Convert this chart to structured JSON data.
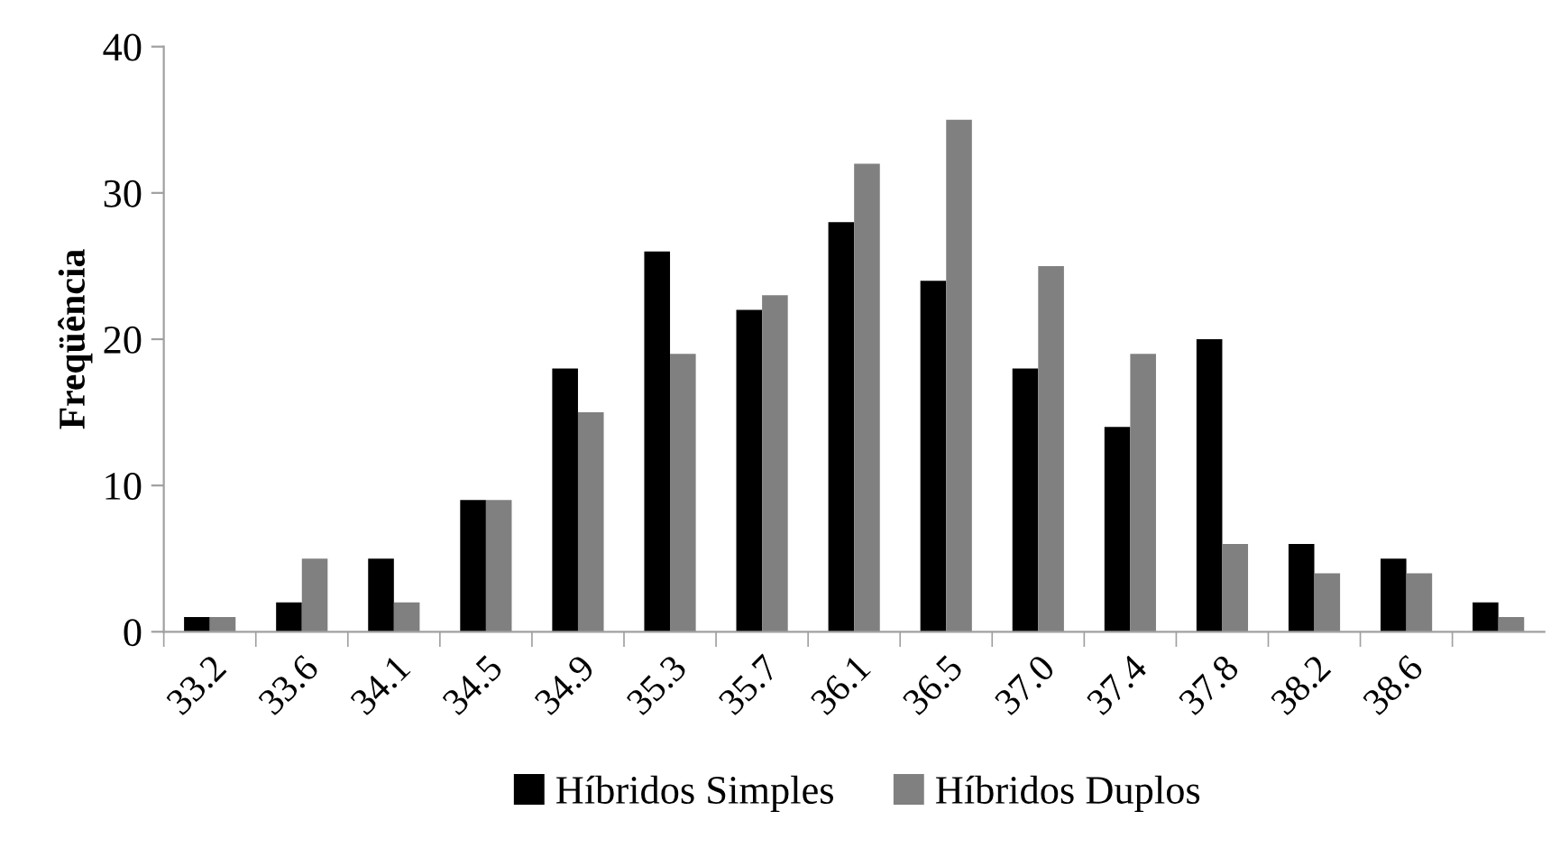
{
  "chart_data": {
    "type": "bar",
    "ylabel": "Freqüência",
    "categories": [
      "33.2",
      "33.6",
      "34.1",
      "34.5",
      "34.9",
      "35.3",
      "35.7",
      "36.1",
      "36.5",
      "37.0",
      "37.4",
      "37.8",
      "38.2",
      "38.6",
      null
    ],
    "series": [
      {
        "name": "Híbridos Simples",
        "color": "#000000",
        "values": [
          1,
          2,
          5,
          9,
          18,
          26,
          22,
          28,
          24,
          18,
          14,
          20,
          6,
          5,
          2
        ]
      },
      {
        "name": "Híbridos Duplos",
        "color": "#808080",
        "values": [
          1,
          5,
          2,
          9,
          15,
          19,
          23,
          32,
          35,
          25,
          19,
          6,
          4,
          4,
          1
        ]
      }
    ],
    "ylim": [
      0,
      40
    ],
    "yticks": [
      0,
      10,
      20,
      30,
      40
    ],
    "grid": false,
    "legend": "bottom"
  }
}
